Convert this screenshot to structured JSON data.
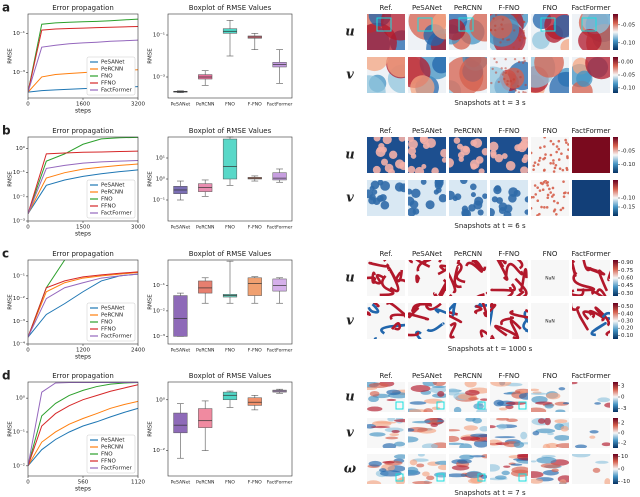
{
  "panel_labels": [
    "a",
    "b",
    "c",
    "d"
  ],
  "chart_data": [
    {
      "type": "line",
      "title": "Error propagation",
      "xlabel": "steps",
      "ylabel": "RMSE",
      "log_y": true,
      "legend": "lower right",
      "x": [
        0,
        400,
        800,
        1200,
        1600,
        2000,
        2400,
        2800,
        3200
      ],
      "xlim": [
        0,
        3200
      ],
      "xticks": [
        0,
        1600,
        3200
      ],
      "ylim": [
        5e-05,
        1
      ],
      "yticks": [
        {
          "value": 0.001,
          "label": "10⁻³"
        },
        {
          "value": 0.1,
          "label": "10⁻¹"
        }
      ],
      "series": [
        {
          "name": "PeSANet",
          "color": "#1f77b4",
          "values": [
            0.0001,
            0.00012,
            0.00013,
            0.00014,
            0.00015,
            0.00016,
            0.00017,
            0.00018,
            0.00019
          ]
        },
        {
          "name": "PeRCNN",
          "color": "#ff7f0e",
          "values": [
            0.0001,
            0.0006,
            0.0008,
            0.0009,
            0.001,
            0.0011,
            0.0012,
            0.0013,
            0.0014
          ]
        },
        {
          "name": "FNO",
          "color": "#2ca02c",
          "values": [
            0.0001,
            0.3,
            0.35,
            0.38,
            0.4,
            0.42,
            0.45,
            0.5,
            0.55
          ]
        },
        {
          "name": "FFNO",
          "color": "#d62728",
          "values": [
            0.0001,
            0.15,
            0.17,
            0.18,
            0.19,
            0.2,
            0.21,
            0.22,
            0.23
          ]
        },
        {
          "name": "FactFormer",
          "color": "#9467bd",
          "values": [
            0.0001,
            0.02,
            0.025,
            0.03,
            0.033,
            0.036,
            0.04,
            0.043,
            0.046
          ]
        }
      ]
    },
    {
      "type": "box",
      "title": "Boxplot of RMSE Values",
      "ylabel": "RMSE",
      "log_y": true,
      "categories": [
        "PeSANet",
        "PeRCNN",
        "FNO",
        "F-FNO",
        "FactFormer"
      ],
      "colors": [
        "#3d5a99",
        "#e8709a",
        "#4fd6c6",
        "#e0707e",
        "#c49be0"
      ],
      "values": [
        [
          0.00018,
          0.00019,
          0.0002,
          0.00021,
          0.00022
        ],
        [
          0.0004,
          0.0008,
          0.001,
          0.0013,
          0.002
        ],
        [
          0.01,
          0.12,
          0.15,
          0.2,
          0.5
        ],
        [
          0.02,
          0.07,
          0.08,
          0.09,
          0.12
        ],
        [
          0.0005,
          0.003,
          0.004,
          0.005,
          0.02
        ]
      ],
      "ylim": [
        0.0001,
        1
      ],
      "yticks": [
        {
          "value": 0.001,
          "label": "10⁻³"
        },
        {
          "value": 0.1,
          "label": "10⁻¹"
        }
      ]
    },
    {
      "type": "line",
      "title": "Error propagation",
      "xlabel": "steps",
      "ylabel": "RMSE",
      "log_y": true,
      "legend": "lower right",
      "x": [
        0,
        500,
        1000,
        1500,
        2000,
        2500,
        3000
      ],
      "xlim": [
        0,
        3000
      ],
      "xticks": [
        0,
        1500,
        3000
      ],
      "ylim": [
        0.001,
        3
      ],
      "yticks": [
        {
          "value": 0.001,
          "label": "10⁻³"
        },
        {
          "value": 0.01,
          "label": "10⁻²"
        },
        {
          "value": 0.1,
          "label": "10⁻¹"
        },
        {
          "value": 1,
          "label": "10⁰"
        }
      ],
      "series": [
        {
          "name": "PeSANet",
          "color": "#1f77b4",
          "values": [
            0.002,
            0.03,
            0.05,
            0.07,
            0.09,
            0.11,
            0.13
          ]
        },
        {
          "name": "PeRCNN",
          "color": "#ff7f0e",
          "values": [
            0.002,
            0.06,
            0.1,
            0.14,
            0.17,
            0.2,
            0.23
          ]
        },
        {
          "name": "FNO",
          "color": "#2ca02c",
          "values": [
            0.002,
            0.3,
            0.6,
            1.5,
            2.5,
            2.8,
            2.9
          ]
        },
        {
          "name": "FFNO",
          "color": "#d62728",
          "values": [
            0.002,
            0.6,
            0.65,
            0.7,
            0.72,
            0.75,
            0.78
          ]
        },
        {
          "name": "FactFormer",
          "color": "#9467bd",
          "values": [
            0.002,
            0.15,
            0.2,
            0.25,
            0.28,
            0.3,
            0.32
          ]
        }
      ]
    },
    {
      "type": "box",
      "title": "Boxplot of RMSE Values",
      "ylabel": "RMSE",
      "log_y": true,
      "categories": [
        "PeSANet",
        "PeRCNN",
        "FNO",
        "F-FNO",
        "FactFormer"
      ],
      "colors": [
        "#7b6fb5",
        "#e88db0",
        "#59d8c8",
        "#e8896b",
        "#c79ee0"
      ],
      "values": [
        [
          0.1,
          0.2,
          0.3,
          0.45,
          0.8
        ],
        [
          0.15,
          0.25,
          0.4,
          0.6,
          0.9
        ],
        [
          0.5,
          1,
          4,
          80,
          100
        ],
        [
          0.8,
          1,
          1.1,
          1.2,
          1.4
        ],
        [
          0.7,
          0.9,
          1.1,
          2,
          3
        ]
      ],
      "ylim": [
        0.01,
        100
      ],
      "yticks": [
        {
          "value": 0.1,
          "label": "10⁻¹"
        },
        {
          "value": 1,
          "label": "10⁰"
        },
        {
          "value": 10,
          "label": "10¹"
        }
      ]
    },
    {
      "type": "line",
      "title": "Error propagation",
      "xlabel": "steps",
      "ylabel": "RMSE",
      "log_y": true,
      "legend": "lower right",
      "x": [
        0,
        400,
        800,
        1200,
        1600,
        2000,
        2400
      ],
      "xlim": [
        0,
        2400
      ],
      "xticks": [
        0,
        1200,
        2400
      ],
      "ylim": [
        0.0001,
        0.5
      ],
      "yticks": [
        {
          "value": 0.0001,
          "label": "10⁻⁴"
        },
        {
          "value": 0.001,
          "label": "10⁻³"
        },
        {
          "value": 0.01,
          "label": "10⁻²"
        },
        {
          "value": 0.1,
          "label": "10⁻¹"
        }
      ],
      "series": [
        {
          "name": "PeSANet",
          "color": "#1f77b4",
          "values": [
            0.0002,
            0.002,
            0.006,
            0.02,
            0.06,
            0.1,
            0.12
          ]
        },
        {
          "name": "PeRCNN",
          "color": "#ff7f0e",
          "values": [
            0.0002,
            0.02,
            0.05,
            0.08,
            0.1,
            0.12,
            0.14
          ]
        },
        {
          "name": "FNO",
          "color": "#2ca02c",
          "values": [
            0.0002,
            0.03,
            0.5,
            null,
            null,
            null,
            null
          ]
        },
        {
          "name": "FFNO",
          "color": "#d62728",
          "values": [
            0.0002,
            0.03,
            0.06,
            0.09,
            0.11,
            0.13,
            0.15
          ]
        },
        {
          "name": "FactFormer",
          "color": "#9467bd",
          "values": [
            0.0002,
            0.01,
            0.03,
            0.05,
            0.08,
            0.1,
            0.12
          ]
        }
      ]
    },
    {
      "type": "box",
      "title": "Boxplot of RMSE Values",
      "ylabel": "RMSE",
      "log_y": true,
      "categories": [
        "PeSANet",
        "PeRCNN",
        "FNO",
        "F-FNO",
        "FactFormer"
      ],
      "colors": [
        "#8e6ab8",
        "#e77f6f",
        "#6bd3c0",
        "#f0a070",
        "#d5b0ea"
      ],
      "values": [
        [
          0.001,
          0.001,
          0.005,
          0.04,
          0.05
        ],
        [
          0.02,
          0.05,
          0.08,
          0.15,
          0.2
        ],
        [
          0.02,
          0.035,
          0.04,
          0.045,
          0.9
        ],
        [
          0.02,
          0.04,
          0.12,
          0.2,
          0.22
        ],
        [
          0.02,
          0.06,
          0.1,
          0.18,
          0.2
        ]
      ],
      "ylim": [
        0.0005,
        1
      ],
      "yticks": [
        {
          "value": 0.001,
          "label": "10⁻³"
        },
        {
          "value": 0.01,
          "label": "10⁻²"
        },
        {
          "value": 0.1,
          "label": "10⁻¹"
        }
      ]
    },
    {
      "type": "line",
      "title": "Error propagation",
      "xlabel": "steps",
      "ylabel": "RMSE",
      "log_y": true,
      "legend": "lower right",
      "x": [
        0,
        140,
        280,
        420,
        560,
        700,
        840,
        980,
        1120
      ],
      "xlim": [
        0,
        1120
      ],
      "xticks": [
        0,
        560,
        1120
      ],
      "ylim": [
        0.005,
        3
      ],
      "yticks": [
        {
          "value": 0.01,
          "label": "10⁻²"
        },
        {
          "value": 0.1,
          "label": "10⁻¹"
        },
        {
          "value": 1,
          "label": "10⁰"
        }
      ],
      "series": [
        {
          "name": "PeSANet",
          "color": "#1f77b4",
          "values": [
            0.01,
            0.03,
            0.06,
            0.1,
            0.15,
            0.2,
            0.28,
            0.38,
            0.5
          ]
        },
        {
          "name": "PeRCNN",
          "color": "#ff7f0e",
          "values": [
            0.01,
            0.05,
            0.1,
            0.17,
            0.25,
            0.35,
            0.5,
            0.65,
            0.8
          ]
        },
        {
          "name": "FNO",
          "color": "#2ca02c",
          "values": [
            0.01,
            0.3,
            0.7,
            1.2,
            1.7,
            2.2,
            2.6,
            2.8,
            2.9
          ]
        },
        {
          "name": "FFNO",
          "color": "#d62728",
          "values": [
            0.01,
            0.15,
            0.35,
            0.6,
            0.9,
            1.2,
            1.6,
            2,
            2.5
          ]
        },
        {
          "name": "FactFormer",
          "color": "#9467bd",
          "values": [
            0.01,
            1.5,
            2.8,
            2.9,
            2.9,
            2.9,
            2.9,
            2.9,
            2.9
          ]
        }
      ]
    },
    {
      "type": "box",
      "title": "Boxplot of RMSE Values",
      "ylabel": "RMSE",
      "log_y": true,
      "categories": [
        "PeSANet",
        "PeRCNN",
        "FNO",
        "F-FNO",
        "FactFormer"
      ],
      "colors": [
        "#8e6ab8",
        "#f08aa0",
        "#4fd6c6",
        "#f0906a",
        "#d5b0ea"
      ],
      "values": [
        [
          0.005,
          0.05,
          0.1,
          0.3,
          0.7
        ],
        [
          0.01,
          0.08,
          0.15,
          0.45,
          0.9
        ],
        [
          0.5,
          1,
          1.5,
          2,
          2.2
        ],
        [
          0.4,
          0.6,
          0.8,
          1.2,
          1.5
        ],
        [
          1.8,
          2,
          2.2,
          2.4,
          2.6
        ]
      ],
      "ylim": [
        0.001,
        5
      ],
      "yticks": [
        {
          "value": 0.01,
          "label": "10⁻²"
        },
        {
          "value": 1,
          "label": "10⁰"
        }
      ]
    }
  ],
  "snapshots": [
    {
      "columns": [
        "Ref.",
        "PeSANet",
        "PeRCNN",
        "F-FNO",
        "FNO",
        "FactFormer"
      ],
      "caption": "Snapshots at t = 3 s",
      "rows": [
        {
          "label": "u",
          "colorbar": {
            "lim": [
              -0.12,
              -0.02
            ],
            "ticks": [
              -0.05,
              {
                "value": -0.1,
                "label": "-0.10"
              }
            ]
          }
        },
        {
          "label": "v",
          "colorbar": {
            "lim": [
              -0.12,
              0.02
            ],
            "ticks": [
              {
                "value": 0,
                "label": "0.00"
              },
              -0.05,
              {
                "value": -0.1,
                "label": "-0.10"
              }
            ]
          }
        }
      ]
    },
    {
      "columns": [
        "Ref.",
        "PeSANet",
        "PeRCNN",
        "F-FNO",
        "FNO",
        "FactFormer"
      ],
      "caption": "Snapshots at t = 6 s",
      "rows": [
        {
          "label": "u",
          "colorbar": {
            "lim": [
              -0.13,
              0
            ],
            "ticks": [
              -0.05,
              {
                "value": -0.1,
                "label": "-0.10"
              }
            ]
          }
        },
        {
          "label": "v",
          "colorbar": {
            "lim": [
              -0.2,
              0
            ],
            "ticks": [
              {
                "value": -0.1,
                "label": "-0.10"
              },
              -0.15
            ]
          }
        }
      ]
    },
    {
      "columns": [
        "Ref.",
        "PeSANet",
        "PeRCNN",
        "F-FNO",
        "FNO",
        "FactFormer"
      ],
      "caption": "Snapshots at t = 1000 s",
      "rows": [
        {
          "label": "u",
          "cells": [
            null,
            null,
            null,
            null,
            "NaN",
            null
          ],
          "colorbar": {
            "lim": [
              0.25,
              0.95
            ],
            "ticks": [
              {
                "value": 0.9,
                "label": "0.90"
              },
              0.75,
              {
                "value": 0.6,
                "label": "0.60"
              },
              0.45,
              {
                "value": 0.3,
                "label": "0.30"
              }
            ]
          }
        },
        {
          "label": "v",
          "cells": [
            null,
            null,
            null,
            null,
            "NaN",
            null
          ],
          "colorbar": {
            "lim": [
              0.05,
              0.55
            ],
            "ticks": [
              {
                "value": 0.5,
                "label": "0.50"
              },
              {
                "value": 0.4,
                "label": "0.40"
              },
              {
                "value": 0.3,
                "label": "0.30"
              },
              {
                "value": 0.2,
                "label": "0.20"
              },
              {
                "value": 0.1,
                "label": "0.10"
              }
            ]
          }
        }
      ]
    },
    {
      "columns": [
        "Ref.",
        "PeSANet",
        "PeRCNN",
        "F-FNO",
        "FNO",
        "FactFormer"
      ],
      "caption": "Snapshots at t = 7 s",
      "rows": [
        {
          "label": "u",
          "colorbar": {
            "lim": [
              -4,
              4
            ],
            "ticks": [
              3,
              0,
              -3
            ]
          }
        },
        {
          "label": "v",
          "colorbar": {
            "lim": [
              -3,
              3
            ],
            "ticks": [
              2,
              0,
              -2
            ]
          }
        },
        {
          "label": "ω",
          "colorbar": {
            "lim": [
              -12,
              12
            ],
            "ticks": [
              10,
              0,
              -10
            ]
          }
        }
      ]
    }
  ]
}
